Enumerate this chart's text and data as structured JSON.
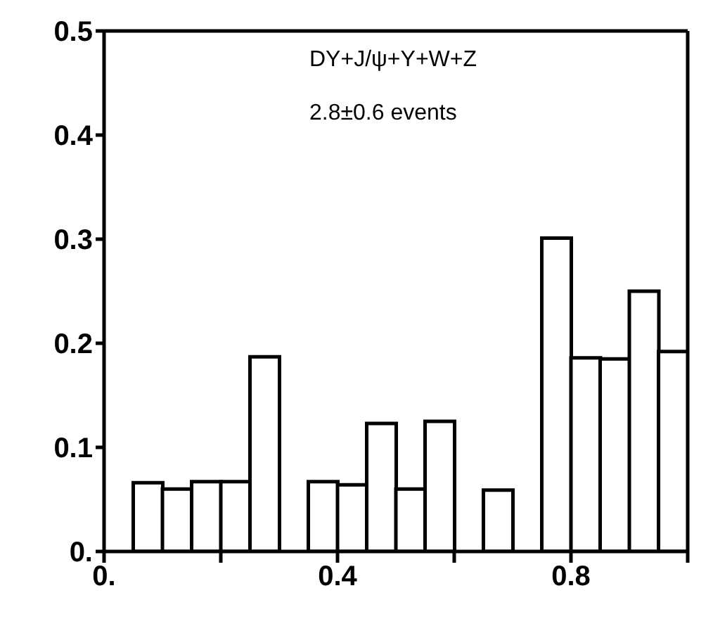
{
  "chart_data": {
    "type": "histogram",
    "bins": [
      0,
      0.05,
      0.1,
      0.15,
      0.2,
      0.25,
      0.3,
      0.35,
      0.4,
      0.45,
      0.5,
      0.55,
      0.6,
      0.65,
      0.7,
      0.75,
      0.8,
      0.85,
      0.9,
      0.95,
      1.0
    ],
    "values": [
      0,
      0.066,
      0.06,
      0.067,
      0.067,
      0.187,
      0,
      0.067,
      0.064,
      0.123,
      0.06,
      0.125,
      0,
      0.059,
      0,
      0.301,
      0.186,
      0.185,
      0.25,
      0.192
    ],
    "color": "#ffffff",
    "xlim": [
      0,
      1
    ],
    "xticks": [
      {
        "value": 0,
        "label": "0."
      },
      {
        "value": 0.2,
        "label": null
      },
      0.4,
      {
        "value": 0.6,
        "label": null
      },
      0.8,
      {
        "value": 1.0,
        "label": null
      }
    ],
    "ylim": [
      0,
      0.5
    ],
    "yticks": [
      {
        "value": 0,
        "label": "0."
      },
      0.1,
      0.2,
      0.3,
      0.4,
      0.5
    ],
    "grid": false,
    "annotations": [
      "DY+J/ψ+Υ+W+Z",
      "2.8±0.6 events"
    ]
  }
}
